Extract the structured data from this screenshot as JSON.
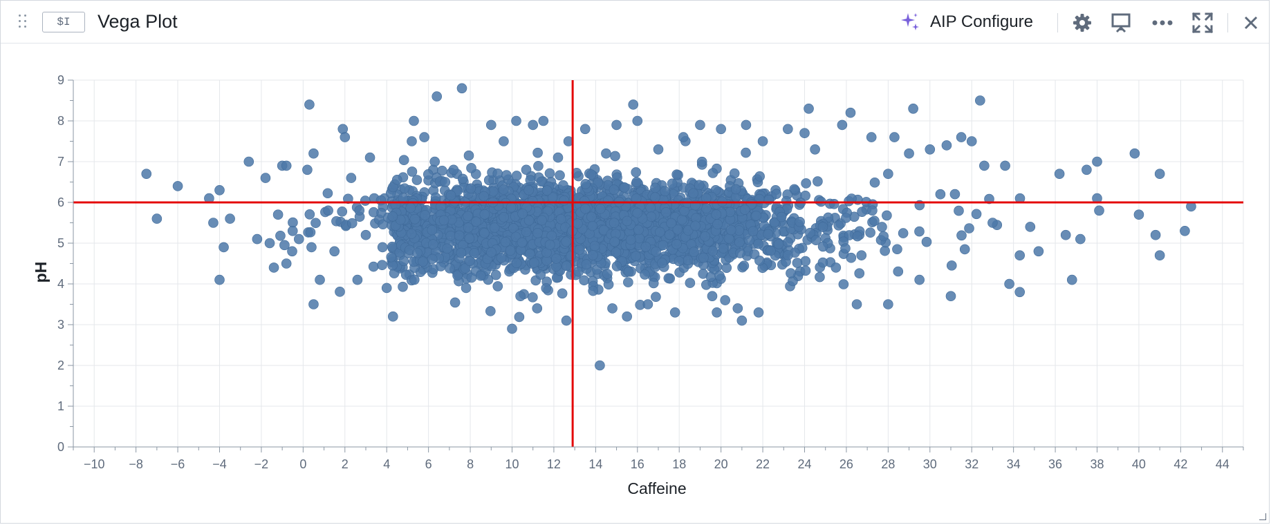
{
  "header": {
    "badge": "$I",
    "title": "Vega Plot",
    "aip_label": "AIP Configure",
    "icons": [
      "drag-grip-icon",
      "sparkle-icon",
      "gear-icon",
      "presentation-icon",
      "more-icon",
      "fullscreen-icon",
      "close-icon"
    ]
  },
  "colors": {
    "point": "#4c78a8",
    "rule": "#e4080a",
    "grid": "#e4e7eb",
    "sparkle": "#7961db"
  },
  "chart_data": {
    "type": "scatter",
    "xlabel": "Caffeine",
    "ylabel": "pH",
    "xlim": [
      -11,
      45
    ],
    "ylim": [
      0,
      9
    ],
    "xticks": [
      "−10",
      "−8",
      "−6",
      "−4",
      "−2",
      "0",
      "2",
      "4",
      "6",
      "8",
      "10",
      "12",
      "14",
      "16",
      "18",
      "20",
      "22",
      "24",
      "26",
      "28",
      "30",
      "32",
      "34",
      "36",
      "38",
      "40",
      "42",
      "44"
    ],
    "yticks": [
      "0",
      "1",
      "2",
      "3",
      "4",
      "5",
      "6",
      "7",
      "8",
      "9"
    ],
    "grid": true,
    "reference_lines": {
      "x": 12.9,
      "y": 6.0
    },
    "points": [
      [
        -7.5,
        6.7
      ],
      [
        -7,
        5.6
      ],
      [
        -6,
        6.4
      ],
      [
        -4.5,
        6.1
      ],
      [
        -4.3,
        5.5
      ],
      [
        -4,
        6.3
      ],
      [
        -4,
        4.1
      ],
      [
        -3.8,
        4.9
      ],
      [
        -3.5,
        5.6
      ],
      [
        -2.6,
        7.0
      ],
      [
        -2.2,
        5.1
      ],
      [
        -1.8,
        6.6
      ],
      [
        -1.6,
        5.0
      ],
      [
        -1.4,
        4.4
      ],
      [
        -1.2,
        5.7
      ],
      [
        -1,
        6.9
      ],
      [
        -0.8,
        6.9
      ],
      [
        -0.8,
        4.5
      ],
      [
        -0.5,
        5.3
      ],
      [
        -0.2,
        5.1
      ],
      [
        0.2,
        6.8
      ],
      [
        0.4,
        4.9
      ],
      [
        0.3,
        8.4
      ],
      [
        0.5,
        7.2
      ],
      [
        0.5,
        3.5
      ],
      [
        0.8,
        4.1
      ],
      [
        1.2,
        5.8
      ],
      [
        1.5,
        4.8
      ],
      [
        1.9,
        7.8
      ],
      [
        2.0,
        7.6
      ],
      [
        2.3,
        6.6
      ],
      [
        2.6,
        4.1
      ],
      [
        3.0,
        5.2
      ],
      [
        3.2,
        7.1
      ],
      [
        3.8,
        4.9
      ],
      [
        4.0,
        3.9
      ],
      [
        4.3,
        3.2
      ],
      [
        5.2,
        7.5
      ],
      [
        5.3,
        8.0
      ],
      [
        5.8,
        7.6
      ],
      [
        6.3,
        7.0
      ],
      [
        6.4,
        8.6
      ],
      [
        6.8,
        6.5
      ],
      [
        7.2,
        6.8
      ],
      [
        7.6,
        8.8
      ],
      [
        7.8,
        3.9
      ],
      [
        8.5,
        4.2
      ],
      [
        9.0,
        7.9
      ],
      [
        9.6,
        7.5
      ],
      [
        10.0,
        2.9
      ],
      [
        10.2,
        8.0
      ],
      [
        10.4,
        3.7
      ],
      [
        10.8,
        6.3
      ],
      [
        11.0,
        7.9
      ],
      [
        11.2,
        3.4
      ],
      [
        11.5,
        8.0
      ],
      [
        12.2,
        7.1
      ],
      [
        12.6,
        3.1
      ],
      [
        12.7,
        7.5
      ],
      [
        13.5,
        7.8
      ],
      [
        14.2,
        2.0
      ],
      [
        14.5,
        7.2
      ],
      [
        14.8,
        3.4
      ],
      [
        15.0,
        7.9
      ],
      [
        15.5,
        3.2
      ],
      [
        15.8,
        8.4
      ],
      [
        16.0,
        8.0
      ],
      [
        16.5,
        3.5
      ],
      [
        17.0,
        7.3
      ],
      [
        17.8,
        3.3
      ],
      [
        18.2,
        7.6
      ],
      [
        19.0,
        7.9
      ],
      [
        19.8,
        3.3
      ],
      [
        20.0,
        7.8
      ],
      [
        20.2,
        3.6
      ],
      [
        20.8,
        3.4
      ],
      [
        21.0,
        3.1
      ],
      [
        21.2,
        7.9
      ],
      [
        21.8,
        3.3
      ],
      [
        22.0,
        7.5
      ],
      [
        23.2,
        7.8
      ],
      [
        24.0,
        7.7
      ],
      [
        24.2,
        8.3
      ],
      [
        24.5,
        7.3
      ],
      [
        25.5,
        4.4
      ],
      [
        25.8,
        7.9
      ],
      [
        26.2,
        8.2
      ],
      [
        26.5,
        3.5
      ],
      [
        27.2,
        7.6
      ],
      [
        28.0,
        6.7
      ],
      [
        28.0,
        3.5
      ],
      [
        28.3,
        7.6
      ],
      [
        29.2,
        8.3
      ],
      [
        29.0,
        7.2
      ],
      [
        29.5,
        4.1
      ],
      [
        30.0,
        7.3
      ],
      [
        30.5,
        6.2
      ],
      [
        30.8,
        7.4
      ],
      [
        31.0,
        3.7
      ],
      [
        31.5,
        7.6
      ],
      [
        32.0,
        7.5
      ],
      [
        32.4,
        8.5
      ],
      [
        32.6,
        6.9
      ],
      [
        33.0,
        5.5
      ],
      [
        33.6,
        6.9
      ],
      [
        33.8,
        4.0
      ],
      [
        34.3,
        4.7
      ],
      [
        34.3,
        3.8
      ],
      [
        34.8,
        5.4
      ],
      [
        35.2,
        4.8
      ],
      [
        36.2,
        6.7
      ],
      [
        36.5,
        5.2
      ],
      [
        36.8,
        4.1
      ],
      [
        37.2,
        5.1
      ],
      [
        37.5,
        6.8
      ],
      [
        38.0,
        7.0
      ],
      [
        38.0,
        6.1
      ],
      [
        38.1,
        5.8
      ],
      [
        39.8,
        7.2
      ],
      [
        40.0,
        5.7
      ],
      [
        40.8,
        5.2
      ],
      [
        41.0,
        6.7
      ],
      [
        41.0,
        4.7
      ],
      [
        42.2,
        5.3
      ],
      [
        42.5,
        5.9
      ]
    ],
    "dense_cluster": {
      "x_center": 13.5,
      "x_spread": 5.5,
      "y_center": 5.4,
      "y_spread": 0.55,
      "approx_count": 3000
    }
  }
}
